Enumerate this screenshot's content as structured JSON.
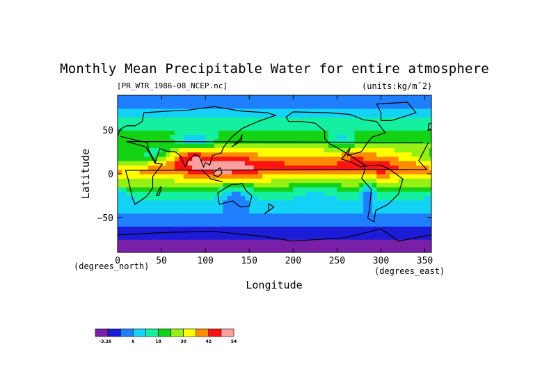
{
  "chart_data": {
    "type": "heatmap",
    "title": "Monthly Mean Precipitable Water for entire atmosphere",
    "dataset_label": "[PR_WTR_1986-08_NCEP.nc]",
    "units_label": "(units:kg/m¯2)",
    "xlabel": "Longitude",
    "ylabel": "Latitude",
    "x_unit_note": "(degrees_east)",
    "y_unit_note": "(degrees_north)",
    "xlim": [
      0,
      357.5
    ],
    "ylim": [
      -90,
      90
    ],
    "x_ticks": [
      "0",
      "50",
      "100",
      "150",
      "200",
      "250",
      "300",
      "350"
    ],
    "x_tick_values": [
      0,
      50,
      100,
      150,
      200,
      250,
      300,
      350
    ],
    "y_ticks": [
      "50",
      "0",
      "−50"
    ],
    "y_tick_values": [
      50,
      0,
      -50
    ],
    "colorbar": {
      "labels": [
        "-3.26",
        "6",
        "18",
        "30",
        "42",
        "54"
      ],
      "label_values": [
        -3.26,
        6,
        18,
        30,
        42,
        54
      ],
      "colors": [
        "#7a1fa8",
        "#1c1cd8",
        "#1f7fff",
        "#14d2f5",
        "#14f0a0",
        "#14d214",
        "#96f014",
        "#ffff00",
        "#ff8c00",
        "#ff1414",
        "#ffa0a0"
      ]
    },
    "zonal_profile": [
      {
        "lat": -90,
        "value": -2
      },
      {
        "lat": -80,
        "value": 1
      },
      {
        "lat": -70,
        "value": 4
      },
      {
        "lat": -62,
        "value": 7
      },
      {
        "lat": -55,
        "value": 9
      },
      {
        "lat": -45,
        "value": 12
      },
      {
        "lat": -35,
        "value": 15
      },
      {
        "lat": -25,
        "value": 21
      },
      {
        "lat": -15,
        "value": 29
      },
      {
        "lat": -5,
        "value": 38
      },
      {
        "lat": 5,
        "value": 47
      },
      {
        "lat": 10,
        "value": 49
      },
      {
        "lat": 20,
        "value": 43
      },
      {
        "lat": 30,
        "value": 35
      },
      {
        "lat": 40,
        "value": 28
      },
      {
        "lat": 50,
        "value": 25
      },
      {
        "lat": 60,
        "value": 20
      },
      {
        "lat": 70,
        "value": 14
      },
      {
        "lat": 80,
        "value": 10
      },
      {
        "lat": 90,
        "value": 10
      }
    ],
    "grid": false
  }
}
